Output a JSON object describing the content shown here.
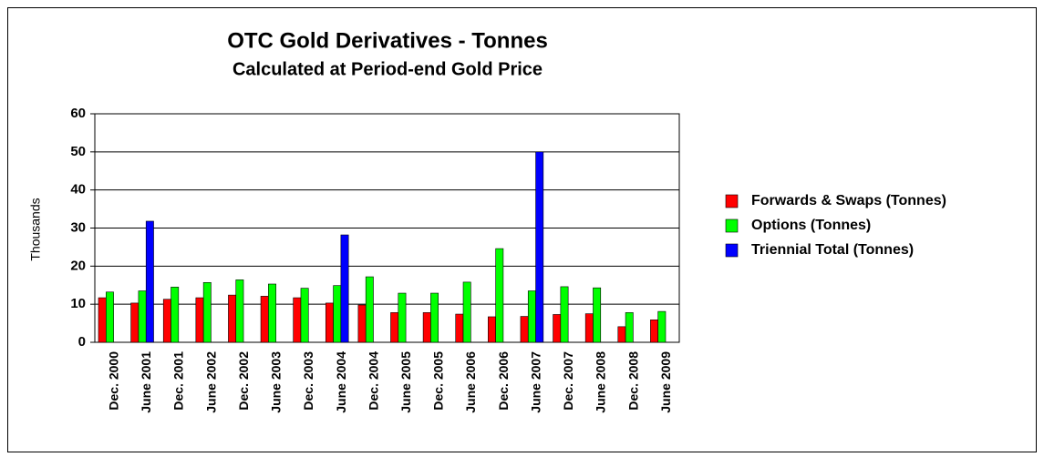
{
  "chart_data": {
    "type": "bar",
    "title": "OTC Gold Derivatives - Tonnes",
    "subtitle": "Calculated at Period-end Gold Price",
    "y_label": "Thousands",
    "categories": [
      "Dec. 2000",
      "June 2001",
      "Dec. 2001",
      "June 2002",
      "Dec. 2002",
      "June 2003",
      "Dec. 2003",
      "June 2004",
      "Dec. 2004",
      "June 2005",
      "Dec. 2005",
      "June 2006",
      "Dec. 2006",
      "June 2007",
      "Dec. 2007",
      "June 2008",
      "Dec. 2008",
      "June 2009"
    ],
    "series": [
      {
        "name": "Forwards & Swaps (Tonnes)",
        "color": "#ff0000",
        "values": [
          11.7,
          10.3,
          11.3,
          11.7,
          12.4,
          12.1,
          11.7,
          10.3,
          9.8,
          7.8,
          7.8,
          7.4,
          6.7,
          6.8,
          7.3,
          7.5,
          4.1,
          5.9
        ]
      },
      {
        "name": "Options (Tonnes)",
        "color": "#00ff00",
        "values": [
          13.2,
          13.5,
          14.5,
          15.7,
          16.4,
          15.3,
          14.2,
          14.9,
          17.2,
          12.9,
          12.9,
          15.8,
          24.6,
          13.5,
          14.6,
          14.3,
          7.8,
          8.1
        ]
      },
      {
        "name": "Triennial Total (Tonnes)",
        "color": "#0000ff",
        "values": [
          null,
          31.8,
          null,
          null,
          null,
          null,
          null,
          28.2,
          null,
          null,
          null,
          null,
          null,
          50,
          null,
          null,
          null,
          null
        ]
      }
    ],
    "ylim": [
      0,
      60
    ],
    "yticks": [
      0,
      10,
      20,
      30,
      40,
      50,
      60
    ],
    "grid": true,
    "legend": "right"
  }
}
